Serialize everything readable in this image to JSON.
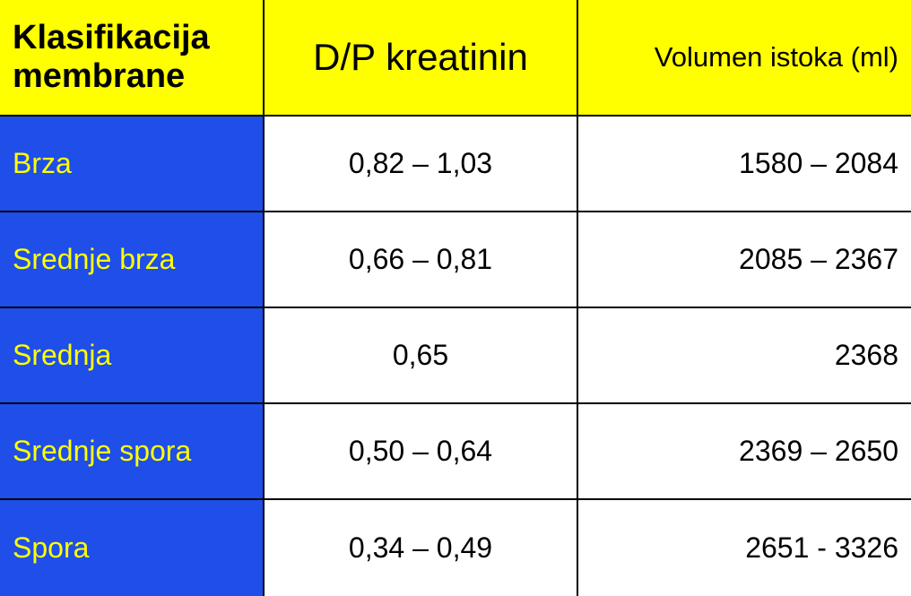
{
  "table": {
    "headers": [
      "Klasifikacija membrane",
      "D/P kreatinin",
      "Volumen istoka (ml)"
    ],
    "rows": [
      {
        "label": "Brza",
        "dp": "0,82 – 1,03",
        "volume": "1580 – 2084"
      },
      {
        "label": "Srednje brza",
        "dp": "0,66 – 0,81",
        "volume": "2085 – 2367"
      },
      {
        "label": "Srednja",
        "dp": "0,65",
        "volume": "2368"
      },
      {
        "label": "Srednje spora",
        "dp": "0,50 – 0,64",
        "volume": "2369 – 2650"
      },
      {
        "label": "Spora",
        "dp": "0,34 – 0,49",
        "volume": "2651 - 3326"
      }
    ]
  },
  "colors": {
    "header_bg": "#ffff00",
    "label_bg": "#1f4ee8",
    "label_text": "#ffff00"
  }
}
